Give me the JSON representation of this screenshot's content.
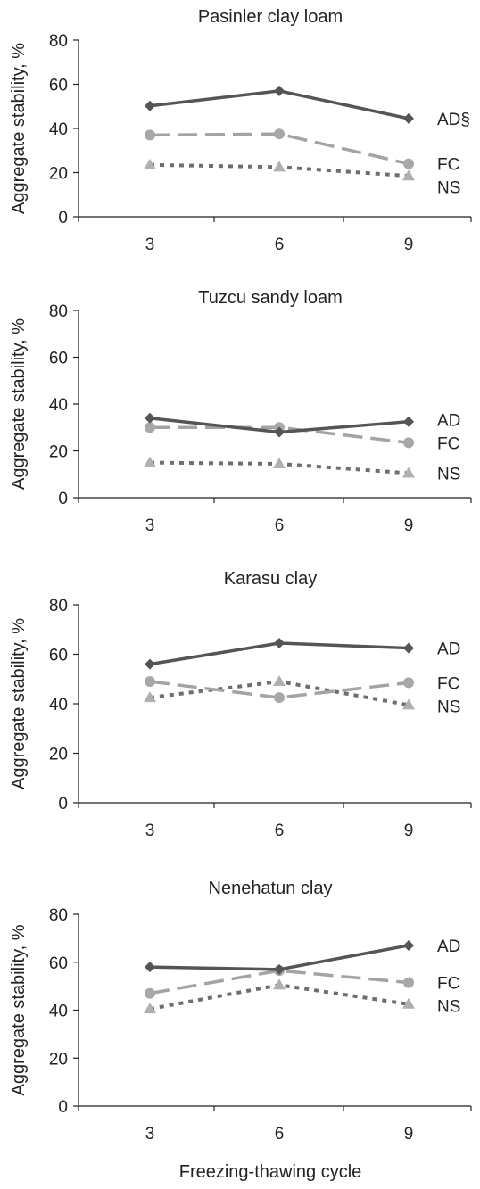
{
  "chart_data": [
    {
      "type": "line",
      "title": "Pasinler clay loam",
      "ylabel": "Aggregate stability, %",
      "xlabel": "",
      "categories": [
        "3",
        "6",
        "9"
      ],
      "ylim": [
        0,
        80
      ],
      "yticks": [
        0,
        20,
        40,
        60,
        80
      ],
      "series": [
        {
          "name": "AD§",
          "values": [
            50.2,
            57.0,
            44.5
          ],
          "color": "#555555",
          "marker": "diamond",
          "dash": "solid"
        },
        {
          "name": "FC",
          "values": [
            37.0,
            37.5,
            24.0
          ],
          "color": "#a3a3a3",
          "marker": "circle",
          "dash": "longdash"
        },
        {
          "name": "NS",
          "values": [
            23.5,
            22.5,
            18.5
          ],
          "color": "#6e6e6e",
          "marker": "triangle",
          "dash": "dot"
        }
      ]
    },
    {
      "type": "line",
      "title": "Tuzcu sandy loam",
      "ylabel": "Aggregate stability, %",
      "xlabel": "",
      "categories": [
        "3",
        "6",
        "9"
      ],
      "ylim": [
        0,
        80
      ],
      "yticks": [
        0,
        20,
        40,
        60,
        80
      ],
      "series": [
        {
          "name": "AD",
          "values": [
            34.0,
            28.0,
            32.5
          ],
          "color": "#555555",
          "marker": "diamond",
          "dash": "solid"
        },
        {
          "name": "FC",
          "values": [
            30.0,
            30.0,
            23.5
          ],
          "color": "#a3a3a3",
          "marker": "circle",
          "dash": "longdash"
        },
        {
          "name": "NS",
          "values": [
            15.0,
            14.5,
            10.5
          ],
          "color": "#6e6e6e",
          "marker": "triangle",
          "dash": "dot"
        }
      ]
    },
    {
      "type": "line",
      "title": "Karasu clay",
      "ylabel": "Aggregate stability, %",
      "xlabel": "",
      "categories": [
        "3",
        "6",
        "9"
      ],
      "ylim": [
        0,
        80
      ],
      "yticks": [
        0,
        20,
        40,
        60,
        80
      ],
      "series": [
        {
          "name": "AD",
          "values": [
            56.0,
            64.5,
            62.5
          ],
          "color": "#555555",
          "marker": "diamond",
          "dash": "solid"
        },
        {
          "name": "FC",
          "values": [
            49.0,
            42.5,
            48.5
          ],
          "color": "#a3a3a3",
          "marker": "circle",
          "dash": "longdash"
        },
        {
          "name": "NS",
          "values": [
            42.5,
            49.0,
            39.5
          ],
          "color": "#6e6e6e",
          "marker": "triangle",
          "dash": "dot"
        }
      ]
    },
    {
      "type": "line",
      "title": "Nenehatun clay",
      "ylabel": "Aggregate stability, %",
      "xlabel": "Freezing-thawing cycle",
      "categories": [
        "3",
        "6",
        "9"
      ],
      "ylim": [
        0,
        80
      ],
      "yticks": [
        0,
        20,
        40,
        60,
        80
      ],
      "series": [
        {
          "name": "AD",
          "values": [
            58.0,
            57.0,
            67.0
          ],
          "color": "#555555",
          "marker": "diamond",
          "dash": "solid"
        },
        {
          "name": "FC",
          "values": [
            47.0,
            56.5,
            51.5
          ],
          "color": "#a3a3a3",
          "marker": "circle",
          "dash": "longdash"
        },
        {
          "name": "NS",
          "values": [
            40.5,
            50.5,
            42.5
          ],
          "color": "#6e6e6e",
          "marker": "triangle",
          "dash": "dot"
        }
      ]
    }
  ]
}
